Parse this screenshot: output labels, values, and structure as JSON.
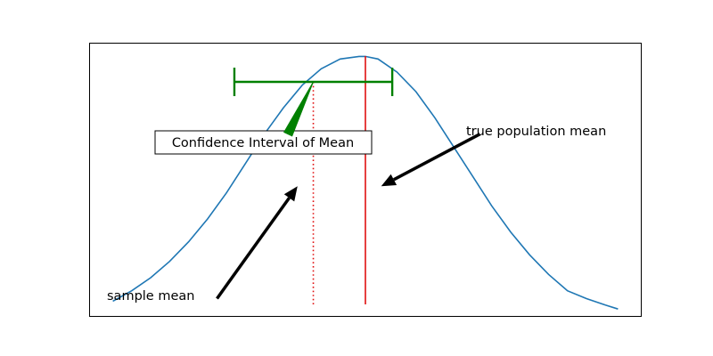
{
  "chart_data": {
    "type": "line",
    "title": "",
    "xlabel": "",
    "ylabel": "",
    "axes_visible": false,
    "xlim": [
      -3.5,
      3.5
    ],
    "ylim": [
      0.0,
      0.42
    ],
    "series": [
      {
        "color": "#1f77b4",
        "x": [
          -3.2,
          -2.96,
          -2.72,
          -2.48,
          -2.24,
          -2.0,
          -1.76,
          -1.52,
          -1.28,
          -1.04,
          -0.8,
          -0.56,
          -0.32,
          -0.08,
          0.0,
          0.16,
          0.4,
          0.64,
          0.88,
          1.12,
          1.36,
          1.6,
          1.84,
          2.08,
          2.32,
          2.56,
          2.8,
          3.04,
          3.2
        ],
        "y": [
          0.024,
          0.04,
          0.06,
          0.085,
          0.115,
          0.15,
          0.19,
          0.235,
          0.28,
          0.32,
          0.355,
          0.38,
          0.395,
          0.399,
          0.399,
          0.395,
          0.375,
          0.345,
          0.305,
          0.26,
          0.215,
          0.17,
          0.13,
          0.095,
          0.065,
          0.04,
          0.028,
          0.018,
          0.012
        ]
      }
    ],
    "vertical_lines": [
      {
        "x": 0.0,
        "y0": 0.0,
        "y1": 0.38,
        "style": "solid",
        "color": "#e01010"
      },
      {
        "x": -0.66,
        "y0": 0.0,
        "y1": 0.36,
        "style": "dotted",
        "color": "#e01010"
      }
    ],
    "errorbar": {
      "x_low": -1.66,
      "x_high": 0.34,
      "y": 0.36,
      "color": "#008000"
    },
    "annotations": [
      {
        "text": "Confidence Interval of Mean",
        "boxed": true,
        "arrow_tip": [
          -0.66,
          0.36
        ],
        "arrow_tail": [
          -0.98,
          0.28
        ],
        "arrow_color": "#008000",
        "arrow_style": "wedge"
      },
      {
        "text": "true population mean",
        "boxed": false,
        "arrow_tip": [
          0.2,
          0.2
        ],
        "arrow_tail": [
          1.45,
          0.28
        ],
        "arrow_color": "#000000",
        "arrow_style": "arrow"
      },
      {
        "text": "sample mean",
        "boxed": false,
        "arrow_tip": [
          -0.86,
          0.2
        ],
        "arrow_tail": [
          -1.88,
          0.028
        ],
        "arrow_color": "#000000",
        "arrow_style": "arrow"
      }
    ]
  }
}
